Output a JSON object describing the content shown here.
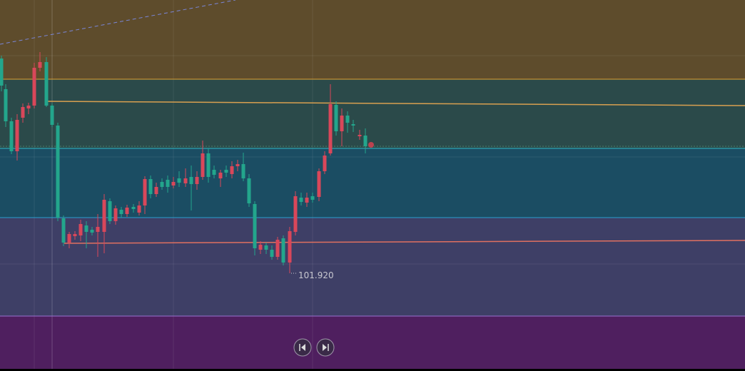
{
  "price_label": "101.920"
}
